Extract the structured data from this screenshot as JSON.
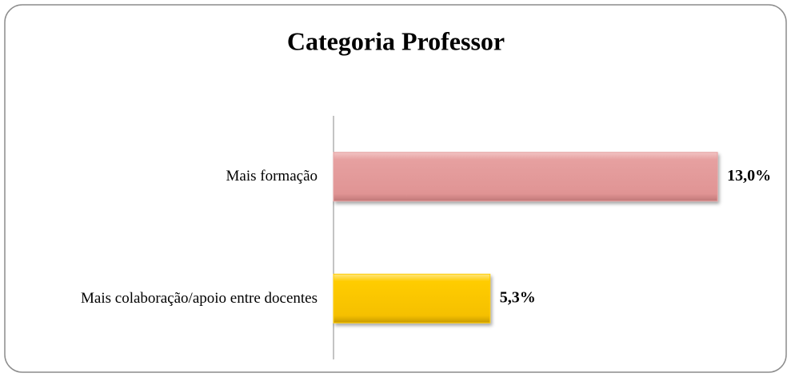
{
  "chart_data": {
    "type": "bar",
    "orientation": "horizontal",
    "title": "Categoria Professor",
    "categories": [
      "Mais formação",
      "Mais colaboração/apoio entre docentes"
    ],
    "values": [
      13.0,
      5.3
    ],
    "value_labels": [
      "13,0%",
      "5,3%"
    ],
    "colors": [
      "#e6a0a0",
      "#ffcc00"
    ],
    "xlim": [
      0,
      14
    ]
  }
}
